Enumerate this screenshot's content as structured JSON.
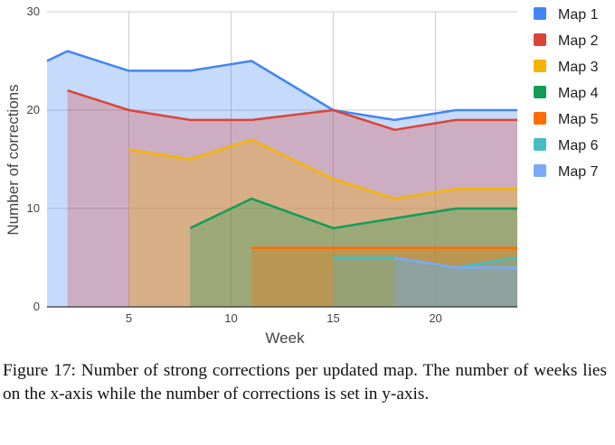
{
  "chart_data": {
    "type": "area",
    "xlabel": "Week",
    "ylabel": "Number of corrections",
    "xlim": [
      1,
      24
    ],
    "ylim": [
      0,
      30
    ],
    "x_ticks": [
      5,
      10,
      15,
      20
    ],
    "y_ticks": [
      0,
      10,
      20,
      30
    ],
    "grid": true,
    "legend_position": "right",
    "series": [
      {
        "name": "Map 1",
        "color": "#4285f4",
        "x": [
          1,
          2,
          5,
          8,
          11,
          15,
          18,
          21,
          24
        ],
        "values": [
          25,
          26,
          24,
          24,
          25,
          20,
          19,
          20,
          20
        ]
      },
      {
        "name": "Map 2",
        "color": "#db4437",
        "x": [
          2,
          5,
          8,
          11,
          15,
          18,
          21,
          24
        ],
        "values": [
          22,
          20,
          19,
          19,
          20,
          18,
          19,
          19
        ]
      },
      {
        "name": "Map 3",
        "color": "#f4b400",
        "x": [
          5,
          8,
          11,
          15,
          18,
          21,
          24
        ],
        "values": [
          16,
          15,
          17,
          13,
          11,
          12,
          12
        ]
      },
      {
        "name": "Map 4",
        "color": "#0f9d58",
        "x": [
          8,
          11,
          15,
          18,
          21,
          24
        ],
        "values": [
          8,
          11,
          8,
          9,
          10,
          10
        ]
      },
      {
        "name": "Map 5",
        "color": "#ff6d01",
        "x": [
          11,
          15,
          18,
          21,
          24
        ],
        "values": [
          6,
          6,
          6,
          6,
          6
        ]
      },
      {
        "name": "Map 6",
        "color": "#46bdc6",
        "x": [
          15,
          18,
          21,
          24
        ],
        "values": [
          5,
          5,
          4,
          5
        ]
      },
      {
        "name": "Map 7",
        "color": "#7baaf7",
        "x": [
          18,
          21,
          24
        ],
        "values": [
          5,
          4,
          4
        ]
      }
    ]
  },
  "caption": "Figure 17: Number of strong corrections per updated map. The number of weeks lies on the x-axis while the number of corrections is set in y-axis."
}
